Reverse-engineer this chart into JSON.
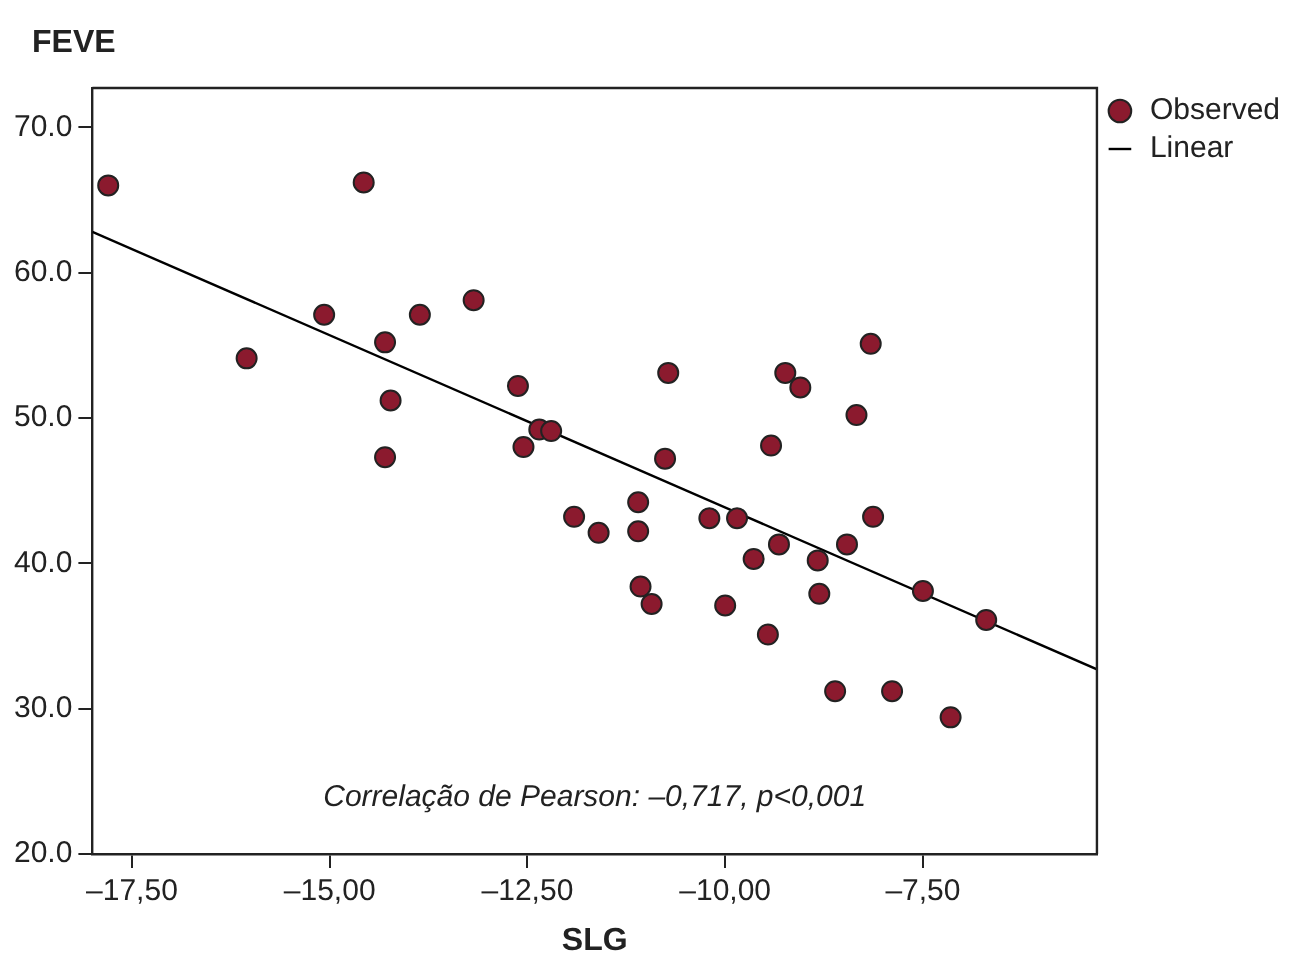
{
  "chart_data": {
    "type": "scatter",
    "xlabel": "SLG",
    "ylabel": "FEVE",
    "annotations": [
      "Correlação de Pearson: –0,717, p<0,001"
    ],
    "xlim": [
      -18,
      -5.3
    ],
    "ylim": [
      20,
      72.7
    ],
    "xticks": [
      {
        "value": -17.5,
        "label": "–17,50"
      },
      {
        "value": -15,
        "label": "–15,00"
      },
      {
        "value": -12.5,
        "label": "–12,50"
      },
      {
        "value": -10,
        "label": "–10,00"
      },
      {
        "value": -7.5,
        "label": "–7,50"
      }
    ],
    "yticks": [
      {
        "value": 20,
        "label": "20.0"
      },
      {
        "value": 30,
        "label": "30.0"
      },
      {
        "value": 40,
        "label": "40.0"
      },
      {
        "value": 50,
        "label": "50.0"
      },
      {
        "value": 60,
        "label": "60.0"
      },
      {
        "value": 70,
        "label": "70.0"
      }
    ],
    "grid": false,
    "legend": "top right",
    "marker": "circle",
    "series": [
      {
        "name": "Observed",
        "color": "#8b1a2e",
        "x": [
          -17.8,
          -14.57,
          -16.05,
          -15.07,
          -14.3,
          -13.86,
          -13.18,
          -14.23,
          -14.3,
          -12.62,
          -12.55,
          -12.35,
          -12.2,
          -11.91,
          -11.6,
          -11.1,
          -11.1,
          -11.07,
          -10.93,
          -10.72,
          -10.76,
          -10.2,
          -9.85,
          -10.0,
          -9.64,
          -9.46,
          -9.42,
          -9.32,
          -9.24,
          -9.05,
          -8.83,
          -8.81,
          -8.61,
          -8.46,
          -8.34,
          -8.16,
          -8.13,
          -7.89,
          -7.5,
          -7.15,
          -6.7
        ],
        "values": [
          66.0,
          66.2,
          54.1,
          57.1,
          55.2,
          57.1,
          58.1,
          51.2,
          47.3,
          52.2,
          48.0,
          49.2,
          49.1,
          43.2,
          42.1,
          44.2,
          42.2,
          38.4,
          37.2,
          53.1,
          47.2,
          43.1,
          43.1,
          37.1,
          40.3,
          35.1,
          48.1,
          41.3,
          53.1,
          52.1,
          40.2,
          37.9,
          31.2,
          41.3,
          50.2,
          55.1,
          43.2,
          31.2,
          38.1,
          29.4,
          36.1
        ]
      },
      {
        "name": "Linear",
        "type": "line",
        "color": "#000000",
        "marker": "none",
        "line_style": "solid",
        "x": [
          -18,
          -5.3
        ],
        "values": [
          62.8,
          32.7
        ]
      }
    ]
  }
}
